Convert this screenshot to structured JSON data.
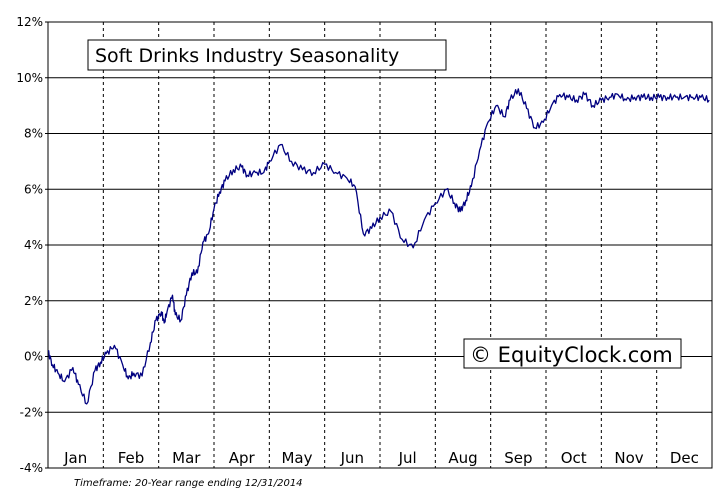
{
  "chart_data": {
    "type": "line",
    "title": "Soft Drinks Industry Seasonality",
    "xlabel": "",
    "ylabel": "",
    "ylim": [
      -4,
      12
    ],
    "y_ticks": [
      -4,
      -2,
      0,
      2,
      4,
      6,
      8,
      10,
      12
    ],
    "y_tick_labels": [
      "-4%",
      "-2%",
      "0%",
      "2%",
      "4%",
      "6%",
      "8%",
      "10%",
      "12%"
    ],
    "categories": [
      "Jan",
      "Feb",
      "Mar",
      "Apr",
      "May",
      "Jun",
      "Jul",
      "Aug",
      "Sep",
      "Oct",
      "Nov",
      "Dec"
    ],
    "grid": true,
    "legend": "none",
    "line_color": "#000080",
    "series": [
      {
        "x": [
          0.0,
          0.08,
          0.18,
          0.3,
          0.45,
          0.55,
          0.7,
          0.85,
          0.95,
          1.05,
          1.2,
          1.35,
          1.45,
          1.55,
          1.7,
          1.85,
          1.95,
          2.05,
          2.1,
          2.15,
          2.25,
          2.3,
          2.4,
          2.5,
          2.6,
          2.7,
          2.8,
          2.9,
          3.0,
          3.1,
          3.2,
          3.35,
          3.5,
          3.6,
          3.75,
          3.9,
          4.0,
          4.2,
          4.4,
          4.6,
          4.8,
          5.0,
          5.2,
          5.4,
          5.55,
          5.7,
          5.85,
          6.0,
          6.2,
          6.4,
          6.6,
          6.8,
          7.0,
          7.2,
          7.35,
          7.45,
          7.55,
          7.65,
          7.8,
          7.95,
          8.1,
          8.25,
          8.35,
          8.5,
          8.65,
          8.8,
          8.95,
          9.1,
          9.25,
          9.4,
          9.55,
          9.7,
          9.85,
          10.0,
          10.15,
          10.3,
          10.45,
          10.6,
          10.75,
          10.9,
          11.05,
          11.2,
          11.35,
          11.5,
          11.65,
          11.8,
          11.95
        ],
        "y": [
          0.2,
          -0.3,
          -0.6,
          -0.9,
          -0.4,
          -1.0,
          -1.7,
          -0.5,
          -0.2,
          0.1,
          0.4,
          -0.3,
          -0.8,
          -0.6,
          -0.7,
          0.5,
          1.3,
          1.6,
          1.2,
          1.6,
          2.2,
          1.5,
          1.3,
          2.2,
          3.0,
          3.0,
          4.1,
          4.4,
          5.3,
          5.9,
          6.3,
          6.7,
          6.8,
          6.5,
          6.6,
          6.6,
          7.0,
          7.6,
          7.0,
          6.7,
          6.6,
          6.9,
          6.6,
          6.4,
          6.1,
          4.4,
          4.6,
          5.0,
          5.2,
          4.2,
          3.9,
          4.9,
          5.5,
          6.0,
          5.5,
          5.2,
          5.6,
          6.1,
          7.4,
          8.4,
          9.0,
          8.6,
          9.2,
          9.6,
          8.9,
          8.2,
          8.4,
          9.0,
          9.4,
          9.3,
          9.2,
          9.4,
          9.0,
          9.2,
          9.3,
          9.4,
          9.2,
          9.3,
          9.3,
          9.3,
          9.3,
          9.3,
          9.3,
          9.3,
          9.3,
          9.3,
          9.2
        ]
      }
    ]
  },
  "watermark": {
    "text": "© EquityClock.com"
  },
  "footnote": {
    "text": "Timeframe: 20-Year range ending 12/31/2014"
  }
}
